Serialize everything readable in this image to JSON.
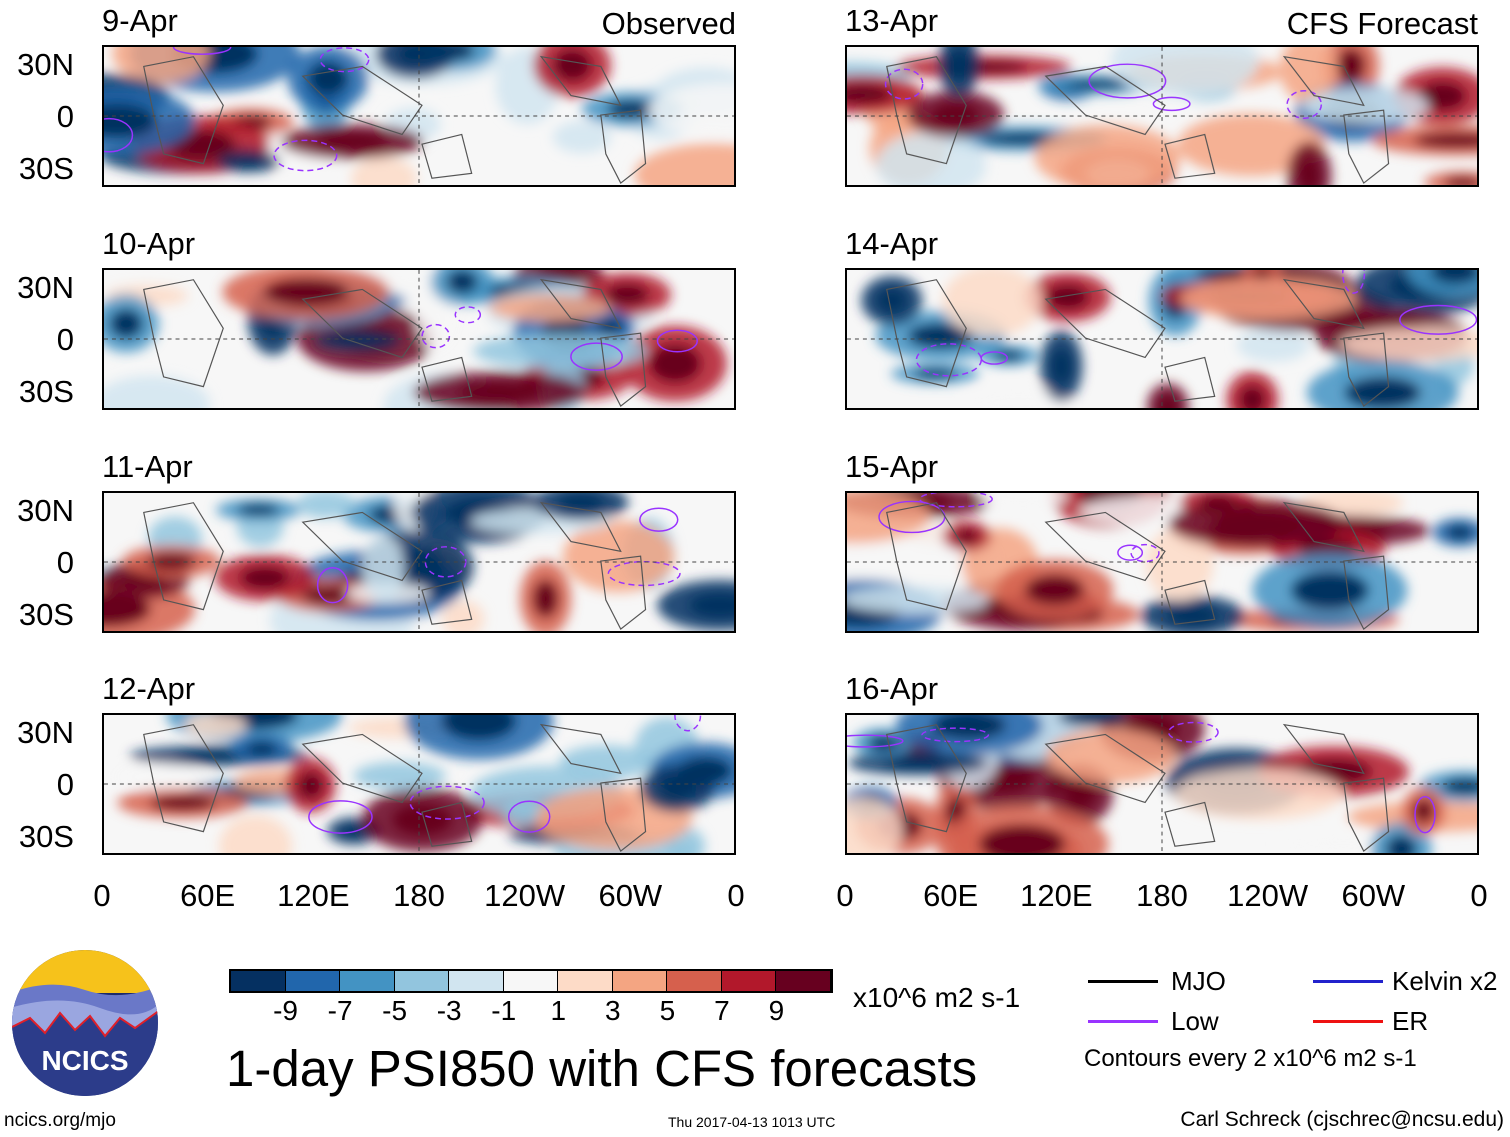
{
  "observed_label": "Observed",
  "forecast_label": "CFS Forecast",
  "panels_left": [
    "9-Apr",
    "10-Apr",
    "11-Apr",
    "12-Apr"
  ],
  "panels_right": [
    "13-Apr",
    "14-Apr",
    "15-Apr",
    "16-Apr"
  ],
  "lat_labels": [
    "30N",
    "0",
    "30S"
  ],
  "lon_labels": [
    "0",
    "60E",
    "120E",
    "180",
    "120W",
    "60W",
    "0"
  ],
  "colorbar": {
    "colors": [
      "#053061",
      "#2166ac",
      "#4393c3",
      "#92c5de",
      "#d1e5f0",
      "#f7f7f7",
      "#fddbc7",
      "#f4a582",
      "#d6604d",
      "#b2182b",
      "#67001f"
    ],
    "labels": [
      "-9",
      "-7",
      "-5",
      "-3",
      "-1",
      "1",
      "3",
      "5",
      "7",
      "9"
    ],
    "units": "x10^6 m2 s-1"
  },
  "title": "1-day PSI850 with CFS forecasts",
  "timestamp": "Thu 2017-04-13 1013 UTC",
  "legend": {
    "items": [
      {
        "label": "MJO",
        "color": "#000000"
      },
      {
        "label": "Kelvin x2",
        "color": "#2222cc"
      },
      {
        "label": "Low",
        "color": "#9933ff"
      },
      {
        "label": "ER",
        "color": "#ee1111"
      }
    ],
    "contours_note": "Contours every 2 x10^6 m2 s-1"
  },
  "logo_text": "NCICS",
  "website": "ncics.org/mjo",
  "credit": "Carl Schreck (cjschrec@ncsu.edu)"
}
